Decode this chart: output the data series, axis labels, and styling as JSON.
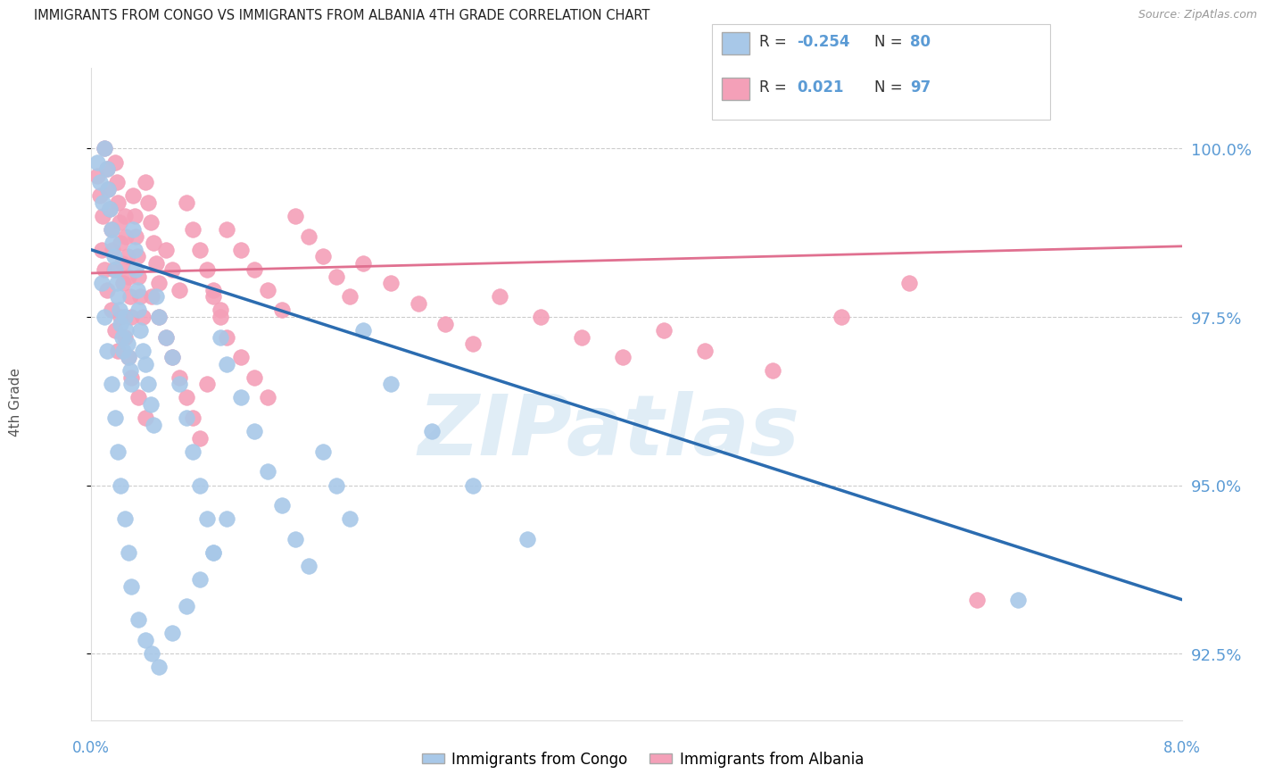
{
  "title": "IMMIGRANTS FROM CONGO VS IMMIGRANTS FROM ALBANIA 4TH GRADE CORRELATION CHART",
  "source": "Source: ZipAtlas.com",
  "ylabel": "4th Grade",
  "yticks": [
    92.5,
    95.0,
    97.5,
    100.0
  ],
  "ytick_labels": [
    "92.5%",
    "95.0%",
    "97.5%",
    "100.0%"
  ],
  "xlim": [
    0.0,
    8.0
  ],
  "ylim": [
    91.5,
    101.2
  ],
  "congo_color": "#a8c8e8",
  "albania_color": "#f4a0b8",
  "congo_line_color": "#2b6cb0",
  "albania_line_color": "#e07090",
  "congo_R": -0.254,
  "congo_N": 80,
  "albania_R": 0.021,
  "albania_N": 97,
  "watermark": "ZIPatlas",
  "watermark_color": "#c8dff0",
  "legend_label_congo": "Immigrants from Congo",
  "legend_label_albania": "Immigrants from Albania",
  "background_color": "#ffffff",
  "grid_color": "#cccccc",
  "right_axis_color": "#5b9bd5",
  "congo_line_x0": 0.0,
  "congo_line_y0": 98.5,
  "congo_line_x1": 8.0,
  "congo_line_y1": 93.3,
  "albania_line_x0": 0.0,
  "albania_line_y0": 98.15,
  "albania_line_x1": 8.0,
  "albania_line_y1": 98.55,
  "congo_scatter_x": [
    0.05,
    0.07,
    0.09,
    0.1,
    0.12,
    0.13,
    0.14,
    0.15,
    0.16,
    0.17,
    0.18,
    0.19,
    0.2,
    0.21,
    0.22,
    0.23,
    0.24,
    0.25,
    0.26,
    0.27,
    0.28,
    0.29,
    0.3,
    0.31,
    0.32,
    0.33,
    0.34,
    0.35,
    0.36,
    0.38,
    0.4,
    0.42,
    0.44,
    0.46,
    0.48,
    0.5,
    0.55,
    0.6,
    0.65,
    0.7,
    0.75,
    0.8,
    0.85,
    0.9,
    0.95,
    1.0,
    1.1,
    1.2,
    1.3,
    1.4,
    1.5,
    1.6,
    1.7,
    1.8,
    1.9,
    2.0,
    2.2,
    2.5,
    2.8,
    3.2,
    0.08,
    0.1,
    0.12,
    0.15,
    0.18,
    0.2,
    0.22,
    0.25,
    0.28,
    0.3,
    0.35,
    0.4,
    0.45,
    0.5,
    0.6,
    0.7,
    0.8,
    0.9,
    1.0,
    6.8
  ],
  "congo_scatter_y": [
    99.8,
    99.5,
    99.2,
    100.0,
    99.7,
    99.4,
    99.1,
    98.8,
    98.6,
    98.4,
    98.2,
    98.0,
    97.8,
    97.6,
    97.4,
    97.2,
    97.0,
    97.5,
    97.3,
    97.1,
    96.9,
    96.7,
    96.5,
    98.8,
    98.5,
    98.2,
    97.9,
    97.6,
    97.3,
    97.0,
    96.8,
    96.5,
    96.2,
    95.9,
    97.8,
    97.5,
    97.2,
    96.9,
    96.5,
    96.0,
    95.5,
    95.0,
    94.5,
    94.0,
    97.2,
    96.8,
    96.3,
    95.8,
    95.2,
    94.7,
    94.2,
    93.8,
    95.5,
    95.0,
    94.5,
    97.3,
    96.5,
    95.8,
    95.0,
    94.2,
    98.0,
    97.5,
    97.0,
    96.5,
    96.0,
    95.5,
    95.0,
    94.5,
    94.0,
    93.5,
    93.0,
    92.7,
    92.5,
    92.3,
    92.8,
    93.2,
    93.6,
    94.0,
    94.5,
    93.3
  ],
  "albania_scatter_x": [
    0.05,
    0.07,
    0.09,
    0.1,
    0.12,
    0.13,
    0.14,
    0.15,
    0.16,
    0.17,
    0.18,
    0.19,
    0.2,
    0.21,
    0.22,
    0.23,
    0.24,
    0.25,
    0.26,
    0.27,
    0.28,
    0.29,
    0.3,
    0.31,
    0.32,
    0.33,
    0.34,
    0.35,
    0.36,
    0.38,
    0.4,
    0.42,
    0.44,
    0.46,
    0.48,
    0.5,
    0.55,
    0.6,
    0.65,
    0.7,
    0.75,
    0.8,
    0.85,
    0.9,
    0.95,
    1.0,
    1.1,
    1.2,
    1.3,
    1.4,
    1.5,
    1.6,
    1.7,
    1.8,
    1.9,
    2.0,
    2.2,
    2.4,
    2.6,
    2.8,
    3.0,
    3.3,
    3.6,
    3.9,
    4.2,
    4.5,
    5.0,
    5.5,
    6.0,
    0.08,
    0.1,
    0.12,
    0.15,
    0.18,
    0.2,
    0.22,
    0.25,
    0.28,
    0.3,
    0.35,
    0.4,
    0.45,
    0.5,
    0.55,
    0.6,
    0.65,
    0.7,
    0.75,
    0.8,
    0.85,
    0.9,
    0.95,
    1.0,
    1.1,
    1.2,
    1.3,
    6.5
  ],
  "albania_scatter_y": [
    99.6,
    99.3,
    99.0,
    100.0,
    99.7,
    99.4,
    99.1,
    98.8,
    98.5,
    98.2,
    99.8,
    99.5,
    99.2,
    98.9,
    98.6,
    98.3,
    98.0,
    99.0,
    98.7,
    98.4,
    98.1,
    97.8,
    97.5,
    99.3,
    99.0,
    98.7,
    98.4,
    98.1,
    97.8,
    97.5,
    99.5,
    99.2,
    98.9,
    98.6,
    98.3,
    98.0,
    98.5,
    98.2,
    97.9,
    99.2,
    98.8,
    98.5,
    98.2,
    97.9,
    97.6,
    98.8,
    98.5,
    98.2,
    97.9,
    97.6,
    99.0,
    98.7,
    98.4,
    98.1,
    97.8,
    98.3,
    98.0,
    97.7,
    97.4,
    97.1,
    97.8,
    97.5,
    97.2,
    96.9,
    97.3,
    97.0,
    96.7,
    97.5,
    98.0,
    98.5,
    98.2,
    97.9,
    97.6,
    97.3,
    97.0,
    97.5,
    97.2,
    96.9,
    96.6,
    96.3,
    96.0,
    97.8,
    97.5,
    97.2,
    96.9,
    96.6,
    96.3,
    96.0,
    95.7,
    96.5,
    97.8,
    97.5,
    97.2,
    96.9,
    96.6,
    96.3,
    93.3
  ]
}
